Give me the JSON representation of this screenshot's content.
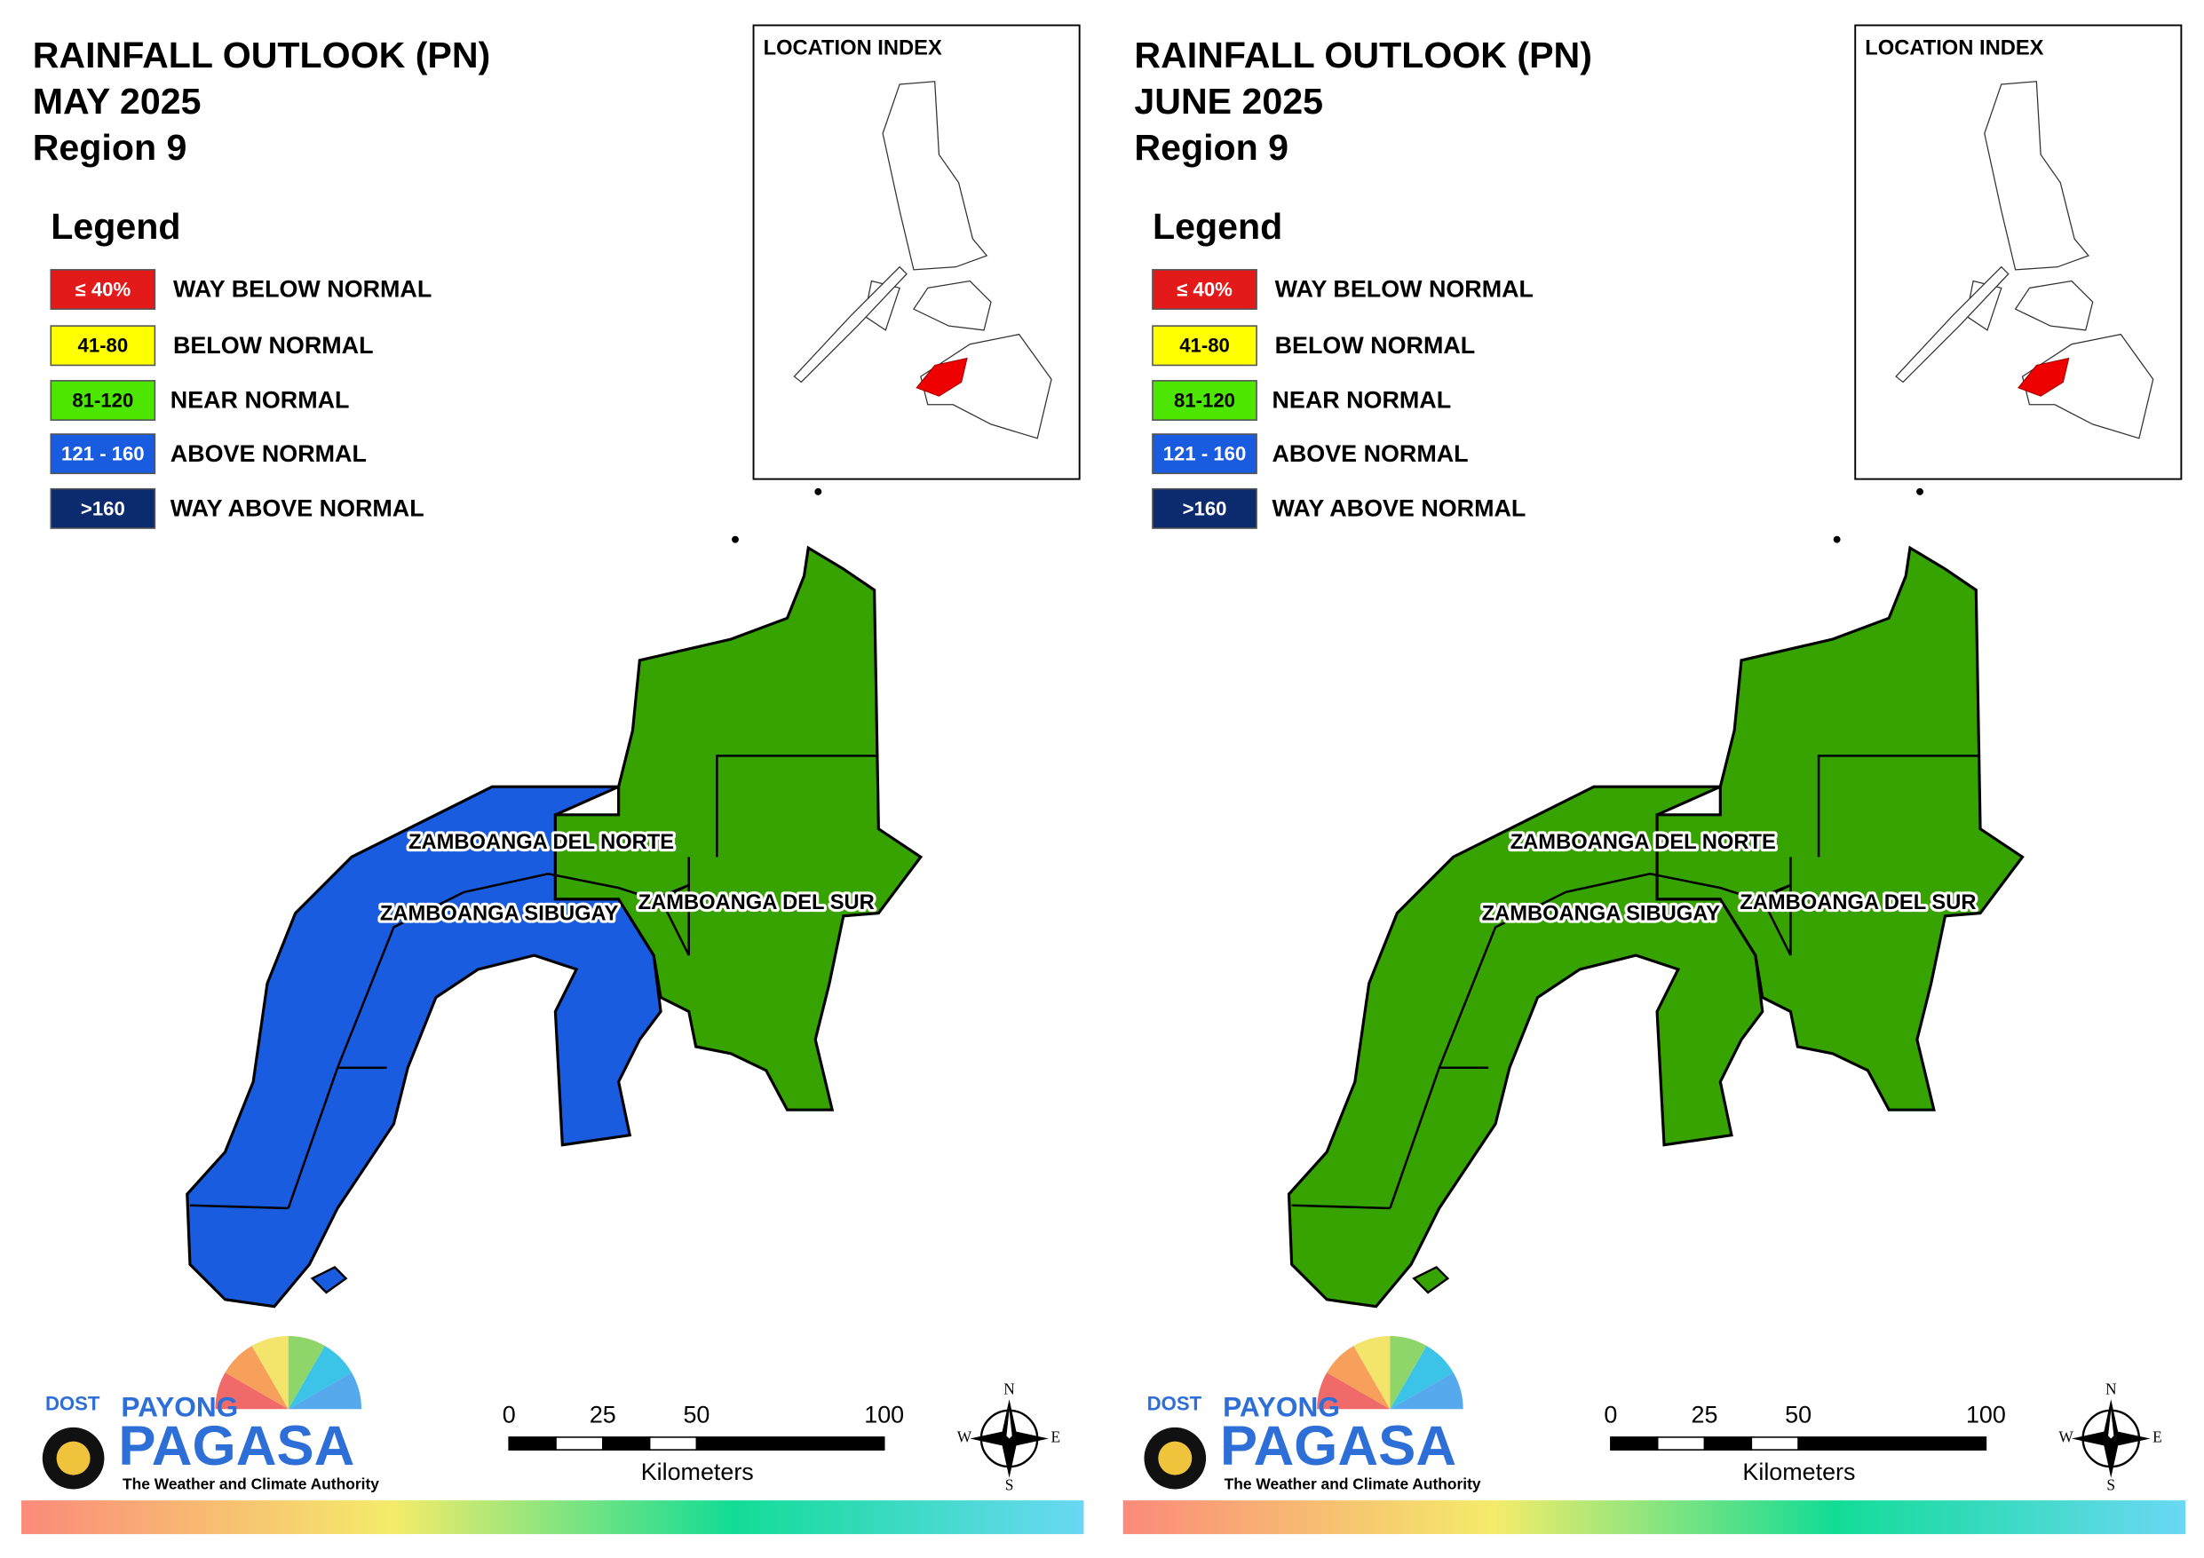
{
  "panels": [
    {
      "title": [
        "RAINFALL OUTLOOK (PN)",
        "MAY 2025",
        "Region 9"
      ],
      "legend_title": "Legend",
      "legend": [
        {
          "swatch": "≤ 40%",
          "label": "WAY BELOW NORMAL",
          "color": "#e41a1a"
        },
        {
          "swatch": "41-80",
          "label": "BELOW NORMAL",
          "color": "#ffff00"
        },
        {
          "swatch": "81-120",
          "label": "NEAR NORMAL",
          "color": "#4ce600"
        },
        {
          "swatch": "121 - 160",
          "label": "ABOVE NORMAL",
          "color": "#1a5ce0"
        },
        {
          "swatch": ">160",
          "label": "WAY ABOVE NORMAL",
          "color": "#0c2a6e"
        }
      ],
      "location_index": "LOCATION INDEX",
      "map_fills": [
        "#1a5ce0",
        "#37a300"
      ],
      "province_labels": [
        "ZAMBOANGA DEL NORTE",
        "ZAMBOANGA SIBUGAY",
        "ZAMBOANGA DEL SUR"
      ],
      "scale_ticks": [
        0,
        25,
        50,
        100
      ],
      "scale_unit": "Kilometers",
      "compass": [
        "N",
        "E",
        "S",
        "W"
      ],
      "logo": {
        "agency": "DOST",
        "name1": "PAYONG",
        "name2": "PAGASA",
        "tagline": "The Weather and Climate Authority"
      }
    },
    {
      "title": [
        "RAINFALL OUTLOOK (PN)",
        "JUNE 2025",
        "Region 9"
      ],
      "legend_title": "Legend",
      "legend": [
        {
          "swatch": "≤ 40%",
          "label": "WAY BELOW NORMAL",
          "color": "#e41a1a"
        },
        {
          "swatch": "41-80",
          "label": "BELOW NORMAL",
          "color": "#ffff00"
        },
        {
          "swatch": "81-120",
          "label": "NEAR NORMAL",
          "color": "#4ce600"
        },
        {
          "swatch": "121 - 160",
          "label": "ABOVE NORMAL",
          "color": "#1a5ce0"
        },
        {
          "swatch": ">160",
          "label": "WAY ABOVE NORMAL",
          "color": "#0c2a6e"
        }
      ],
      "location_index": "LOCATION INDEX",
      "map_fills": [
        "#37a300",
        "#37a300"
      ],
      "province_labels": [
        "ZAMBOANGA DEL NORTE",
        "ZAMBOANGA SIBUGAY",
        "ZAMBOANGA DEL SUR"
      ],
      "scale_ticks": [
        0,
        25,
        50,
        100
      ],
      "scale_unit": "Kilometers",
      "compass": [
        "N",
        "E",
        "S",
        "W"
      ],
      "logo": {
        "agency": "DOST",
        "name1": "PAYONG",
        "name2": "PAGASA",
        "tagline": "The Weather and Climate Authority"
      }
    }
  ]
}
